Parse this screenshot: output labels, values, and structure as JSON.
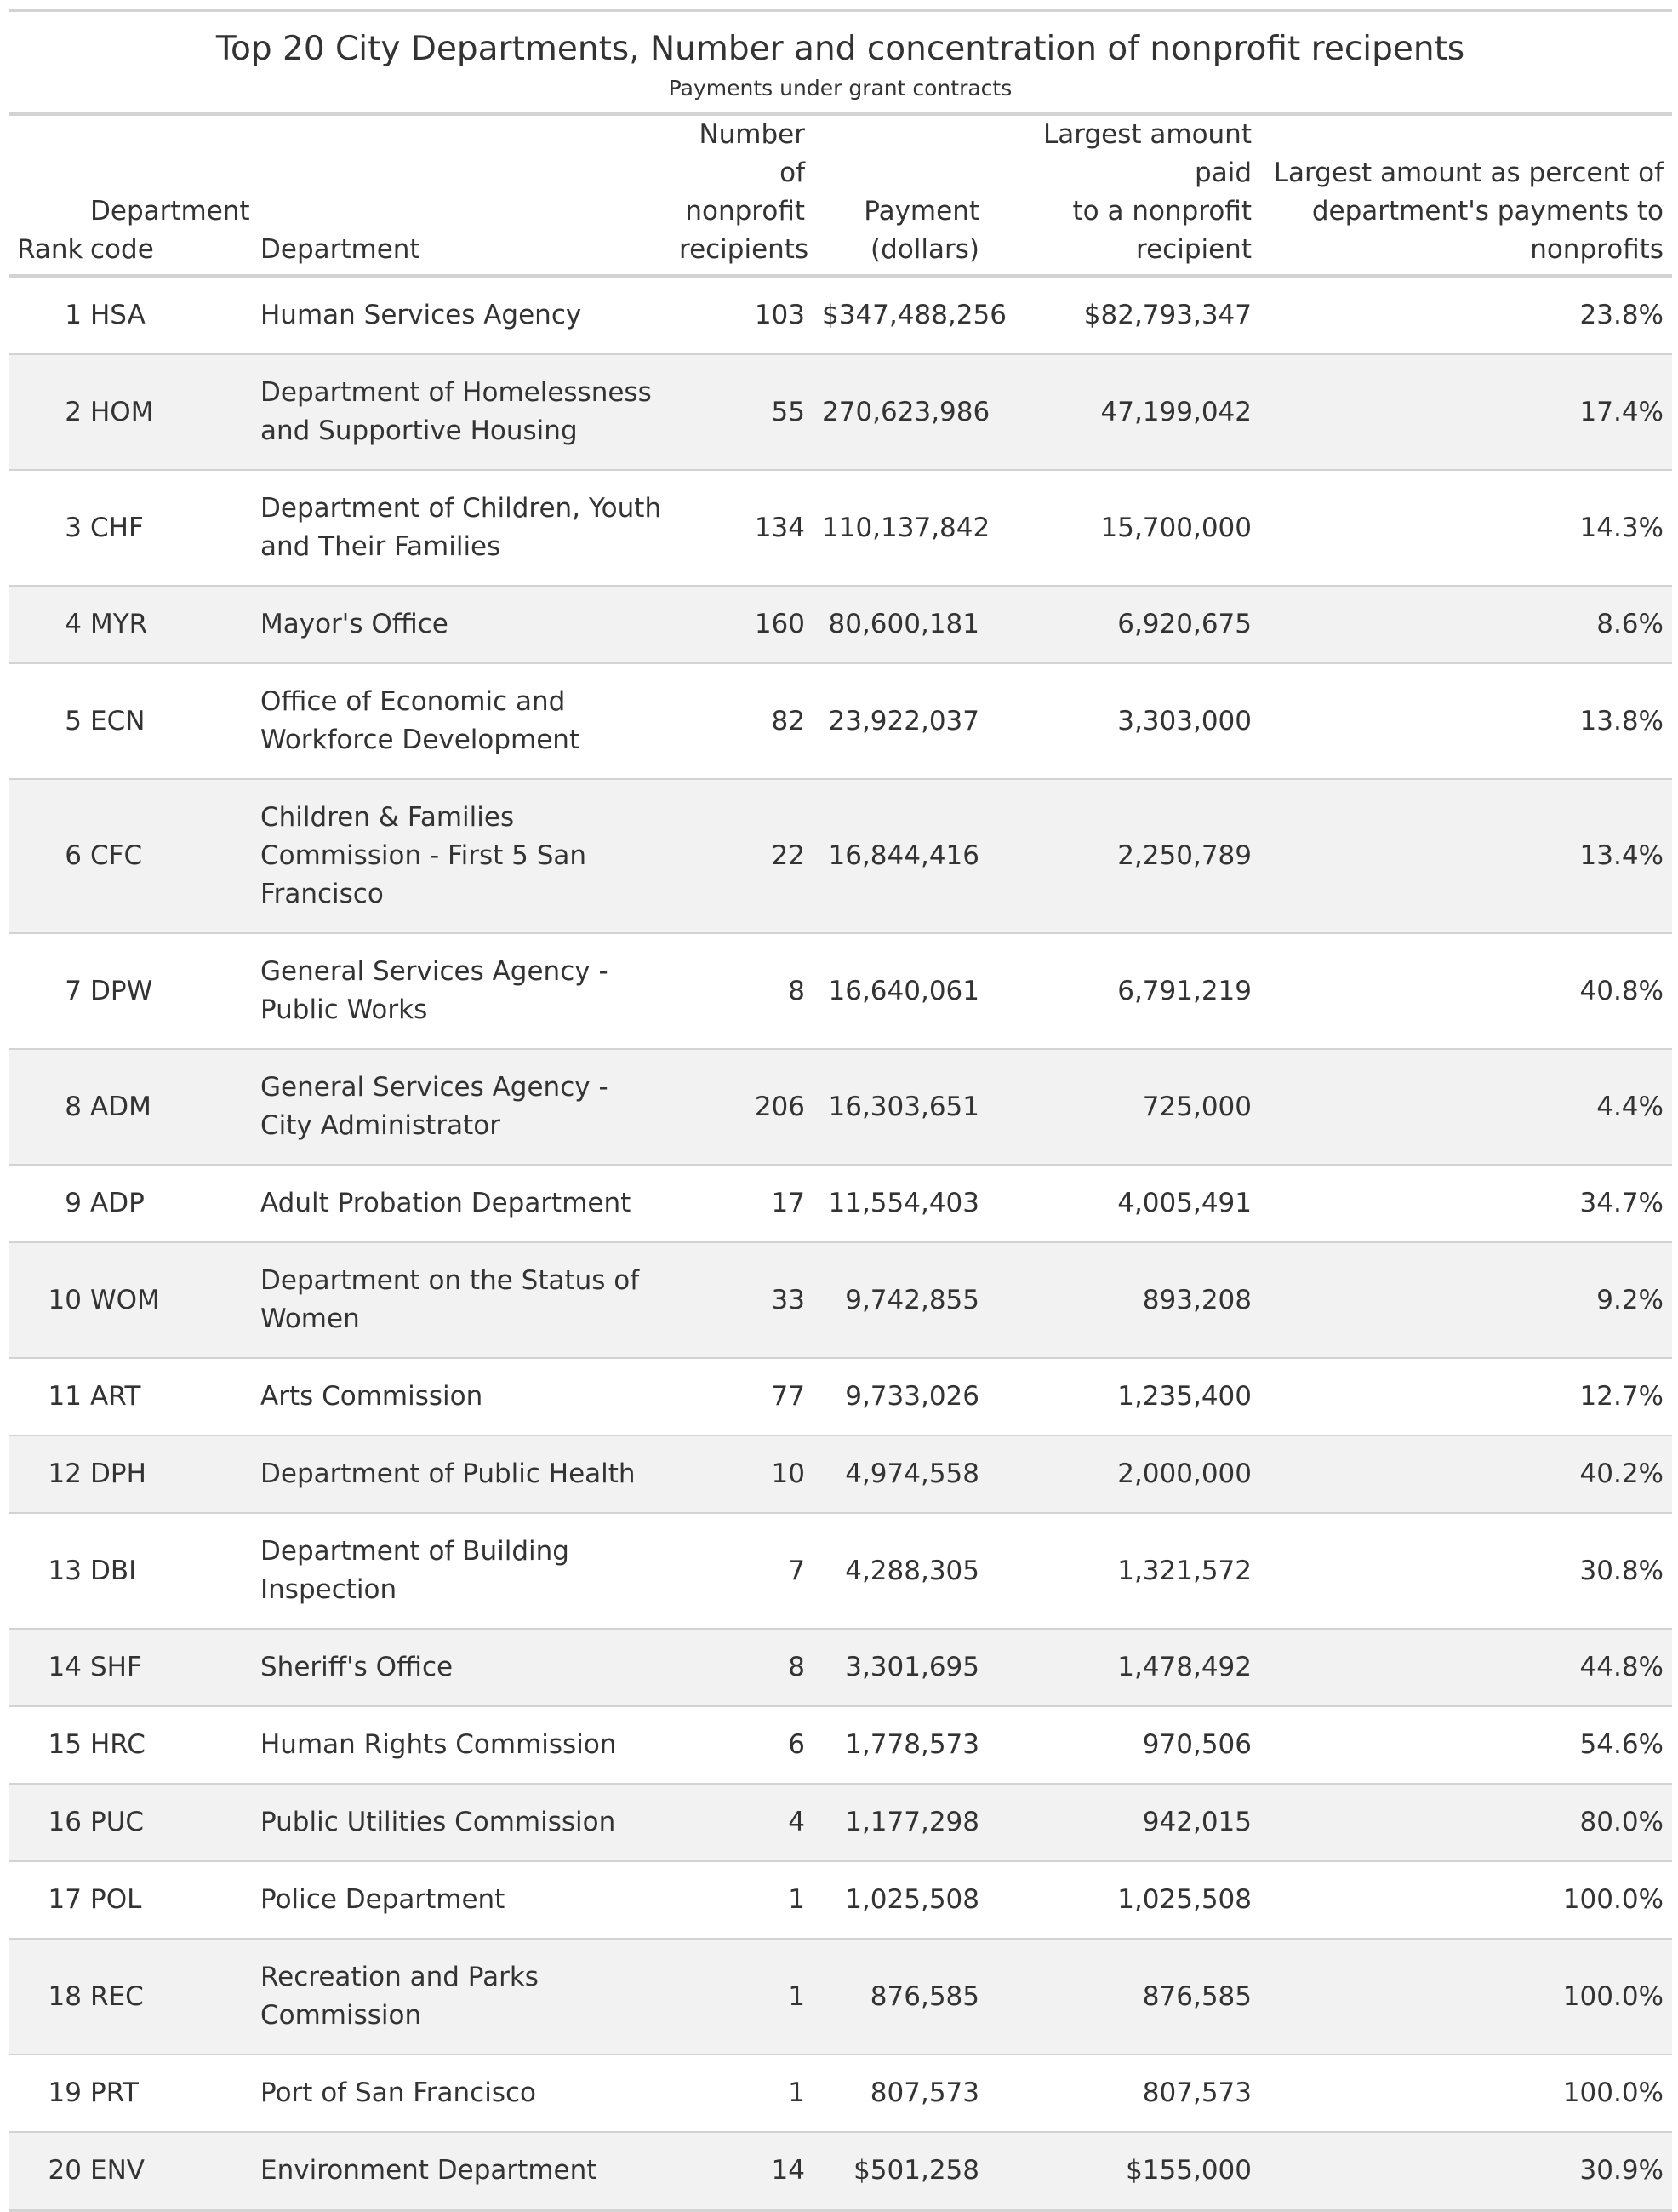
{
  "title": "Top 20 City Departments, Number and concentration of nonprofit recipents",
  "subtitle": "Payments under grant contracts",
  "columns": {
    "rank": "Rank",
    "code_line1": "Department",
    "code_line2": "code",
    "department": "Department",
    "recipients_line1": "Number of",
    "recipients_line2": "nonprofit",
    "recipients_line3": "recipients",
    "payment_line1": "Payment",
    "payment_line2": "(dollars)",
    "largest_line1": "Largest amount paid",
    "largest_line2": "to a nonprofit",
    "largest_line3": "recipient",
    "pct_line1": "Largest amount as percent of",
    "pct_line2": "department's payments to",
    "pct_line3": "nonprofits"
  },
  "rows": [
    {
      "rank": "1",
      "code": "HSA",
      "department": "Human Services Agency",
      "recipients": "103",
      "payment": "$347,488,256",
      "largest": "$82,793,347",
      "pct": "23.8%"
    },
    {
      "rank": "2",
      "code": "HOM",
      "department": "Department of Homelessness and Supportive Housing",
      "recipients": "55",
      "payment": "270,623,986",
      "largest": "47,199,042",
      "pct": "17.4%"
    },
    {
      "rank": "3",
      "code": "CHF",
      "department": "Department of Children, Youth and Their Families",
      "recipients": "134",
      "payment": "110,137,842",
      "largest": "15,700,000",
      "pct": "14.3%"
    },
    {
      "rank": "4",
      "code": "MYR",
      "department": "Mayor's Office",
      "recipients": "160",
      "payment": "80,600,181",
      "largest": "6,920,675",
      "pct": "8.6%"
    },
    {
      "rank": "5",
      "code": "ECN",
      "department": "Office of Economic and Workforce Development",
      "recipients": "82",
      "payment": "23,922,037",
      "largest": "3,303,000",
      "pct": "13.8%"
    },
    {
      "rank": "6",
      "code": "CFC",
      "department": "Children & Families Commission - First 5 San Francisco",
      "recipients": "22",
      "payment": "16,844,416",
      "largest": "2,250,789",
      "pct": "13.4%"
    },
    {
      "rank": "7",
      "code": "DPW",
      "department": "General Services Agency - Public Works",
      "recipients": "8",
      "payment": "16,640,061",
      "largest": "6,791,219",
      "pct": "40.8%"
    },
    {
      "rank": "8",
      "code": "ADM",
      "department": "General Services Agency - City Administrator",
      "recipients": "206",
      "payment": "16,303,651",
      "largest": "725,000",
      "pct": "4.4%"
    },
    {
      "rank": "9",
      "code": "ADP",
      "department": "Adult Probation Department",
      "recipients": "17",
      "payment": "11,554,403",
      "largest": "4,005,491",
      "pct": "34.7%"
    },
    {
      "rank": "10",
      "code": "WOM",
      "department": "Department on the Status of Women",
      "recipients": "33",
      "payment": "9,742,855",
      "largest": "893,208",
      "pct": "9.2%"
    },
    {
      "rank": "11",
      "code": "ART",
      "department": "Arts Commission",
      "recipients": "77",
      "payment": "9,733,026",
      "largest": "1,235,400",
      "pct": "12.7%"
    },
    {
      "rank": "12",
      "code": "DPH",
      "department": "Department of Public Health",
      "recipients": "10",
      "payment": "4,974,558",
      "largest": "2,000,000",
      "pct": "40.2%"
    },
    {
      "rank": "13",
      "code": "DBI",
      "department": "Department of Building Inspection",
      "recipients": "7",
      "payment": "4,288,305",
      "largest": "1,321,572",
      "pct": "30.8%"
    },
    {
      "rank": "14",
      "code": "SHF",
      "department": "Sheriff's Office",
      "recipients": "8",
      "payment": "3,301,695",
      "largest": "1,478,492",
      "pct": "44.8%"
    },
    {
      "rank": "15",
      "code": "HRC",
      "department": "Human Rights Commission",
      "recipients": "6",
      "payment": "1,778,573",
      "largest": "970,506",
      "pct": "54.6%"
    },
    {
      "rank": "16",
      "code": "PUC",
      "department": "Public Utilities Commission",
      "recipients": "4",
      "payment": "1,177,298",
      "largest": "942,015",
      "pct": "80.0%"
    },
    {
      "rank": "17",
      "code": "POL",
      "department": "Police Department",
      "recipients": "1",
      "payment": "1,025,508",
      "largest": "1,025,508",
      "pct": "100.0%"
    },
    {
      "rank": "18",
      "code": "REC",
      "department": "Recreation and Parks Commission",
      "recipients": "1",
      "payment": "876,585",
      "largest": "876,585",
      "pct": "100.0%"
    },
    {
      "rank": "19",
      "code": "PRT",
      "department": "Port of San Francisco",
      "recipients": "1",
      "payment": "807,573",
      "largest": "807,573",
      "pct": "100.0%"
    },
    {
      "rank": "20",
      "code": "ENV",
      "department": "Environment Department",
      "recipients": "14",
      "payment": "$501,258",
      "largest": "$155,000",
      "pct": "30.9%"
    }
  ]
}
